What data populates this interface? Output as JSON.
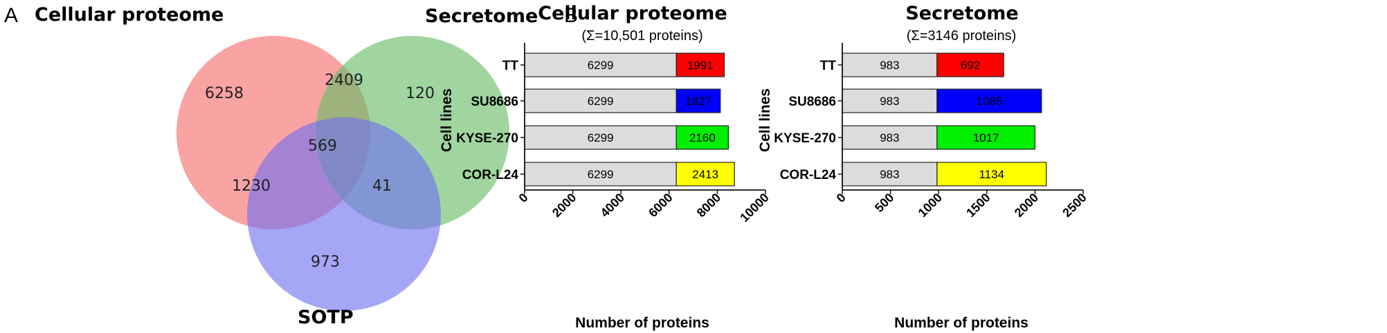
{
  "panels": {
    "a_letter": "A",
    "b_letter": "B"
  },
  "venn": {
    "labels": {
      "cellular": "Cellular proteome",
      "secretome": "Secretome",
      "sotp": "SOTP"
    },
    "colors": {
      "cellular": "#f56b6b",
      "secretome": "#66bb66",
      "sotp": "#6f6ff2"
    },
    "regions": {
      "cellular_only": "6258",
      "cellular_secretome": "2409",
      "secretome_only": "120",
      "all_three": "569",
      "cellular_sotp": "1230",
      "secretome_sotp": "41",
      "sotp_only": "973"
    }
  },
  "segment_colors": {
    "base": "#dcdcdc",
    "TT": "#ff0000",
    "SU8686": "#0000ff",
    "KYSE-270": "#00ee00",
    "COR-L24": "#ffff00"
  },
  "chart_data": [
    {
      "type": "bar",
      "orientation": "horizontal",
      "stacked": true,
      "title": "Cellular proteome",
      "subtitle": "(Σ=10,501 proteins)",
      "xlabel": "Number of proteins",
      "ylabel": "Cell lines",
      "categories": [
        "TT",
        "SU8686",
        "KYSE-270",
        "COR-L24"
      ],
      "series": [
        {
          "values": [
            6299,
            6299,
            6299,
            6299
          ]
        },
        {
          "values": [
            1991,
            1827,
            2160,
            2413
          ]
        }
      ],
      "data_labels": [
        [
          "6299",
          "6299",
          "6299",
          "6299"
        ],
        [
          "1991",
          "1827",
          "2160",
          "2413"
        ]
      ],
      "xlim": [
        0,
        10000
      ],
      "xticks": [
        "0",
        "2000",
        "4000",
        "6000",
        "8000",
        "10000"
      ]
    },
    {
      "type": "bar",
      "orientation": "horizontal",
      "stacked": true,
      "title": "Secretome",
      "subtitle": "(Σ=3146 proteins)",
      "xlabel": "Number of proteins",
      "ylabel": "Cell lines",
      "categories": [
        "TT",
        "SU8686",
        "KYSE-270",
        "COR-L24"
      ],
      "series": [
        {
          "values": [
            983,
            983,
            983,
            983
          ]
        },
        {
          "values": [
            692,
            1085,
            1017,
            1134
          ]
        }
      ],
      "data_labels": [
        [
          "983",
          "983",
          "983",
          "983"
        ],
        [
          "692",
          "1085",
          "1017",
          "1134"
        ]
      ],
      "xlim": [
        0,
        2500
      ],
      "xticks": [
        "0",
        "500",
        "1000",
        "1500",
        "2000",
        "2500"
      ]
    }
  ]
}
